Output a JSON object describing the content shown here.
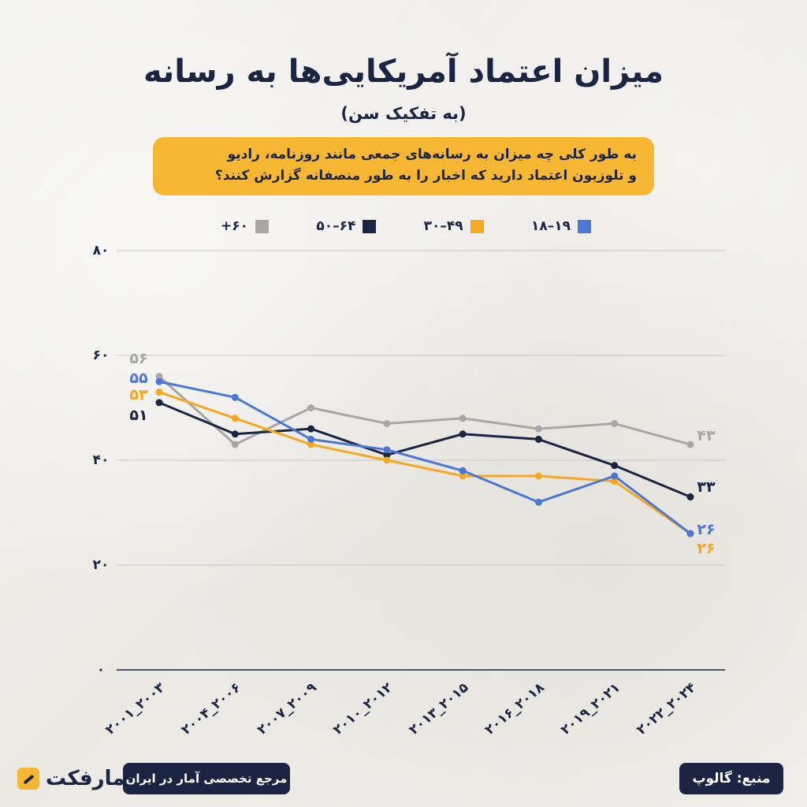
{
  "header": {
    "title": "میزان اعتماد آمریکایی‌ها به رسانه",
    "subtitle": "(به تفکیک سن)",
    "question_line1": "به طور کلی چه میزان به رسانه‌های جمعی مانند روزنامه، رادیو",
    "question_line2": "و تلوزیون اعتماد دارید که اخبار را به طور منصفانه گزارش کنند؟"
  },
  "footer": {
    "source": "منبع: گالوپ",
    "reference": "مرجع تخصصی آمار در ایران",
    "brand": "آمارفکت"
  },
  "colors": {
    "navy": "#1c2444",
    "accent": "#f7b733",
    "grid": "#c9c7c0"
  },
  "chart_data": {
    "type": "line",
    "title": "میزان اعتماد آمریکایی‌ها به رسانه",
    "subtitle": "(به تفکیک سن)",
    "x": [
      "۲۰۰۱_۲۰۰۳",
      "۲۰۰۴_۲۰۰۶",
      "۲۰۰۷_۲۰۰۹",
      "۲۰۱۰_۲۰۱۲",
      "۲۰۱۳_۲۰۱۵",
      "۲۰۱۶_۲۰۱۸",
      "۲۰۱۹_۲۰۲۱",
      "۲۰۲۲_۲۰۲۴"
    ],
    "ylim": [
      0,
      80
    ],
    "yticks": [
      0,
      20,
      40,
      60,
      80
    ],
    "ytick_labels": [
      "۰",
      "۲۰",
      "۴۰",
      "۶۰",
      "۸۰"
    ],
    "grid": true,
    "legend_position": "top",
    "series": [
      {
        "name": "۱۸–۱۹",
        "color": "#4a78d4",
        "values": [
          55,
          52,
          44,
          42,
          38,
          32,
          37,
          26
        ],
        "start_label": "۵۵",
        "end_label": "۲۶"
      },
      {
        "name": "۳۰–۴۹",
        "color": "#f7a823",
        "values": [
          53,
          48,
          43,
          40,
          37,
          37,
          36,
          26
        ],
        "start_label": "۵۳",
        "end_label": "۲۶"
      },
      {
        "name": "۵۰–۶۴",
        "color": "#1c2444",
        "values": [
          51,
          45,
          46,
          41,
          45,
          44,
          39,
          33
        ],
        "start_label": "۵۱",
        "end_label": "۳۳"
      },
      {
        "name": "+۶۰",
        "color": "#a7a7a7",
        "values": [
          56,
          43,
          50,
          47,
          48,
          46,
          47,
          43
        ],
        "start_label": "۵۶",
        "end_label": "۴۳"
      }
    ]
  }
}
